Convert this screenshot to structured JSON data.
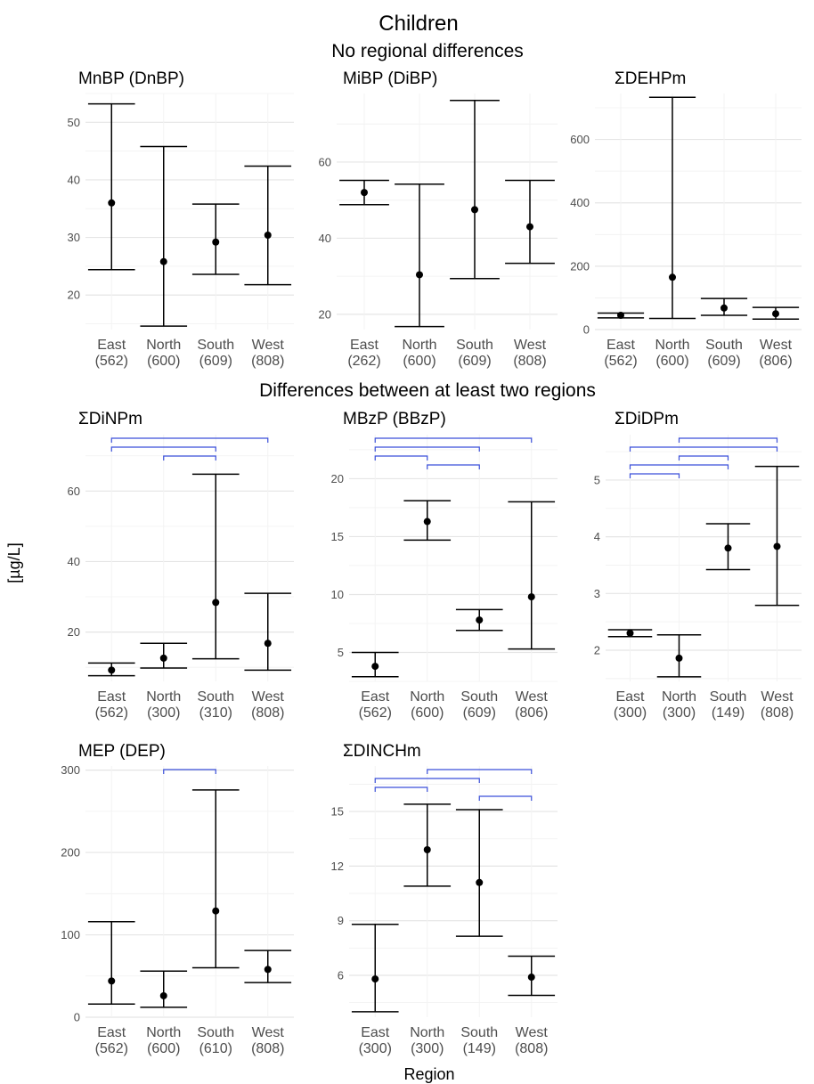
{
  "figure": {
    "title": "Children",
    "section_top": "No regional differences",
    "section_mid": "Differences between at least two regions",
    "xlabel": "Region",
    "ylabel": "[µg/L]"
  },
  "colors": {
    "error_bar": "#000000",
    "point": "#000000",
    "bracket": "#3b4fd9",
    "grid": "#e5e5e5"
  },
  "chart_data": [
    {
      "type": "errorbar",
      "title": "MnBP (DnBP)",
      "categories": [
        "East\n(562)",
        "North\n(600)",
        "South\n(609)",
        "West\n(808)"
      ],
      "values": [
        36,
        25.8,
        29.2,
        30.4
      ],
      "lower": [
        24.4,
        14.6,
        23.6,
        21.8
      ],
      "upper": [
        53.2,
        45.8,
        35.8,
        42.4
      ],
      "ylim": [
        14,
        55
      ],
      "yticks": [
        20,
        30,
        40,
        50
      ],
      "brackets": []
    },
    {
      "type": "errorbar",
      "title": "MiBP (DiBP)",
      "categories": [
        "East\n(262)",
        "North\n(600)",
        "South\n(609)",
        "West\n(808)"
      ],
      "values": [
        52,
        30.4,
        47.5,
        43
      ],
      "lower": [
        48.8,
        16.8,
        29.4,
        33.4
      ],
      "upper": [
        55.2,
        54.2,
        76.2,
        55.2
      ],
      "ylim": [
        16,
        78
      ],
      "yticks": [
        20,
        40,
        60
      ],
      "brackets": []
    },
    {
      "type": "errorbar",
      "title": "ΣDEHPm",
      "categories": [
        "East\n(562)",
        "North\n(600)",
        "South\n(609)",
        "West\n(806)"
      ],
      "values": [
        45,
        165,
        68,
        50
      ],
      "lower": [
        37,
        35,
        45,
        33
      ],
      "upper": [
        52,
        733,
        98,
        70
      ],
      "ylim": [
        0,
        745
      ],
      "yticks": [
        0,
        200,
        400,
        600
      ],
      "brackets": []
    },
    {
      "type": "errorbar",
      "title": "ΣDiNPm",
      "categories": [
        "East\n(562)",
        "North\n(300)",
        "South\n(310)",
        "West\n(808)"
      ],
      "values": [
        9.2,
        12.6,
        28.4,
        16.8
      ],
      "lower": [
        7.6,
        9.8,
        12.4,
        9.2
      ],
      "upper": [
        11.2,
        16.8,
        64.8,
        31
      ],
      "ylim": [
        6,
        76
      ],
      "yticks": [
        20,
        40,
        60
      ],
      "brackets": [
        [
          0,
          3
        ],
        [
          0,
          2
        ],
        [
          1,
          2
        ]
      ]
    },
    {
      "type": "errorbar",
      "title": "MBzP (BBzP)",
      "categories": [
        "East\n(562)",
        "North\n(600)",
        "South\n(609)",
        "West\n(806)"
      ],
      "values": [
        3.8,
        16.3,
        7.8,
        9.8
      ],
      "lower": [
        2.9,
        14.7,
        6.9,
        5.3
      ],
      "upper": [
        5,
        18.1,
        8.7,
        18
      ],
      "ylim": [
        2.5,
        23.8
      ],
      "yticks": [
        5,
        10,
        15,
        20
      ],
      "brackets": [
        [
          0,
          3
        ],
        [
          0,
          2
        ],
        [
          0,
          1
        ],
        [
          1,
          2
        ]
      ]
    },
    {
      "type": "errorbar",
      "title": "ΣDiDPm",
      "categories": [
        "East\n(300)",
        "North\n(300)",
        "South\n(149)",
        "West\n(808)"
      ],
      "values": [
        2.3,
        1.86,
        3.8,
        3.83
      ],
      "lower": [
        2.24,
        1.53,
        3.42,
        2.79
      ],
      "upper": [
        2.36,
        2.27,
        4.23,
        5.24
      ],
      "ylim": [
        1.45,
        5.8
      ],
      "yticks": [
        2,
        3,
        4,
        5
      ],
      "brackets": [
        [
          1,
          3
        ],
        [
          0,
          3
        ],
        [
          1,
          2
        ],
        [
          0,
          2
        ],
        [
          0,
          1
        ]
      ]
    },
    {
      "type": "errorbar",
      "title": "MEP (DEP)",
      "categories": [
        "East\n(562)",
        "North\n(600)",
        "South\n(610)",
        "West\n(808)"
      ],
      "values": [
        44,
        26,
        129,
        58
      ],
      "lower": [
        16,
        12,
        60,
        42
      ],
      "upper": [
        116,
        56,
        276,
        81
      ],
      "ylim": [
        0,
        305
      ],
      "yticks": [
        0,
        100,
        200,
        300
      ],
      "brackets": [
        [
          1,
          2
        ]
      ]
    },
    {
      "type": "errorbar",
      "title": "ΣDINCHm",
      "categories": [
        "East\n(300)",
        "North\n(300)",
        "South\n(149)",
        "West\n(808)"
      ],
      "values": [
        5.8,
        12.9,
        11.1,
        5.9
      ],
      "lower": [
        4,
        10.9,
        8.15,
        4.9
      ],
      "upper": [
        8.8,
        15.4,
        15.1,
        7.05
      ],
      "ylim": [
        3.7,
        17.5
      ],
      "yticks": [
        6,
        9,
        12,
        15
      ],
      "brackets": [
        [
          1,
          3
        ],
        [
          0,
          2
        ],
        [
          0,
          1
        ],
        [
          2,
          3
        ]
      ]
    }
  ]
}
